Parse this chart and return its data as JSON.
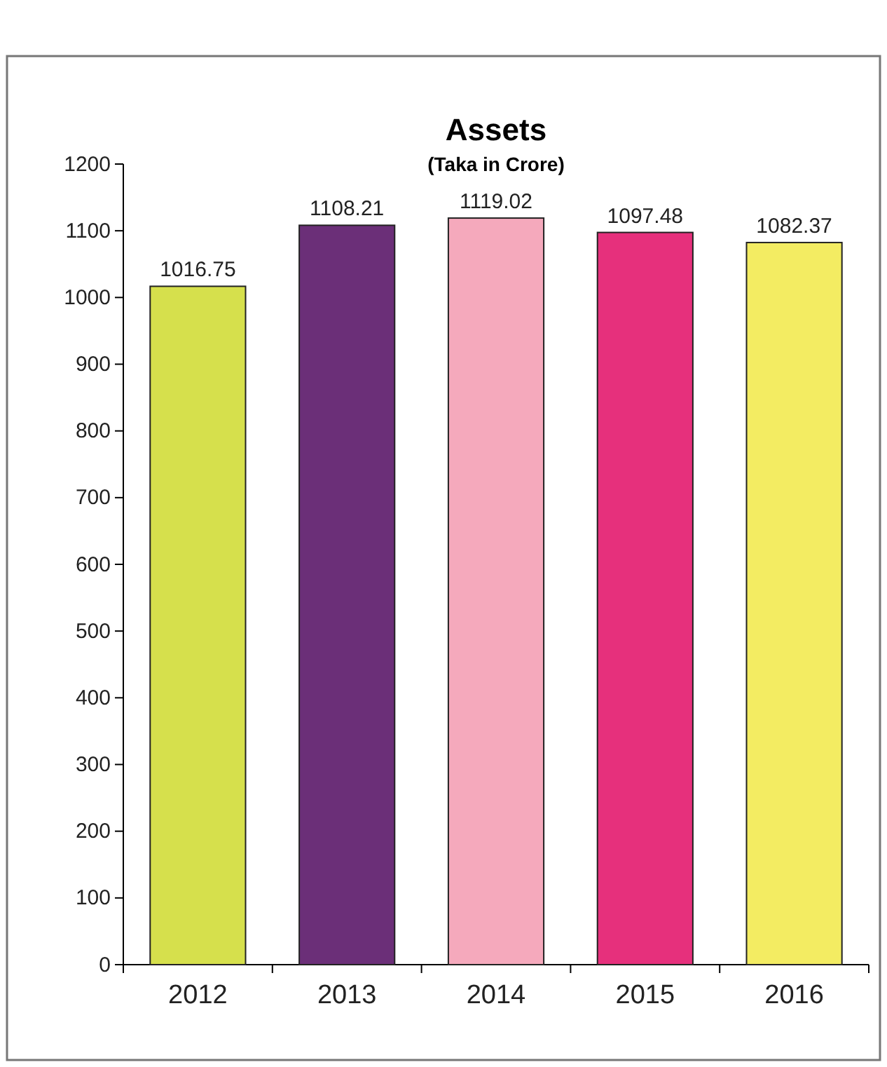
{
  "chart_data": {
    "type": "bar",
    "title": "Assets",
    "subtitle": "(Taka in Crore)",
    "categories": [
      "2012",
      "2013",
      "2014",
      "2015",
      "2016"
    ],
    "values": [
      1016.75,
      1108.21,
      1119.02,
      1097.48,
      1082.37
    ],
    "colors": [
      "#d6e04c",
      "#6b2f78",
      "#f5a9bc",
      "#e6307c",
      "#f3ec62"
    ],
    "ylim": [
      0,
      1200
    ],
    "yticks": [
      0,
      100,
      200,
      300,
      400,
      500,
      600,
      700,
      800,
      900,
      1000,
      1100,
      1200
    ],
    "data_labels": true
  }
}
